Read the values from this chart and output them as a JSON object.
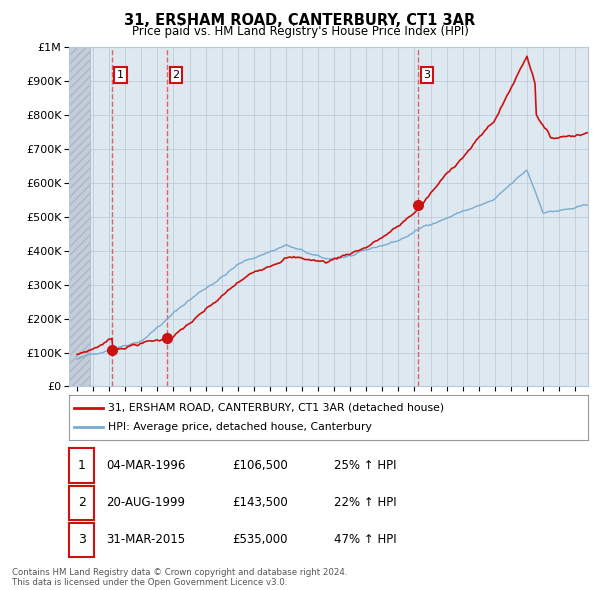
{
  "title": "31, ERSHAM ROAD, CANTERBURY, CT1 3AR",
  "subtitle": "Price paid vs. HM Land Registry's House Price Index (HPI)",
  "legend_label_red": "31, ERSHAM ROAD, CANTERBURY, CT1 3AR (detached house)",
  "legend_label_blue": "HPI: Average price, detached house, Canterbury",
  "transactions": [
    {
      "num": 1,
      "date": "04-MAR-1996",
      "year": 1996.17,
      "price": 106500,
      "hpi_pct": "25% ↑ HPI"
    },
    {
      "num": 2,
      "date": "20-AUG-1999",
      "year": 1999.63,
      "price": 143500,
      "hpi_pct": "22% ↑ HPI"
    },
    {
      "num": 3,
      "date": "31-MAR-2015",
      "year": 2015.25,
      "price": 535000,
      "hpi_pct": "47% ↑ HPI"
    }
  ],
  "table_rows": [
    {
      "num": "1",
      "date": "04-MAR-1996",
      "price": "£106,500",
      "change": "25% ↑ HPI"
    },
    {
      "num": "2",
      "date": "20-AUG-1999",
      "price": "£143,500",
      "change": "22% ↑ HPI"
    },
    {
      "num": "3",
      "date": "31-MAR-2015",
      "price": "£535,000",
      "change": "47% ↑ HPI"
    }
  ],
  "footnote": "Contains HM Land Registry data © Crown copyright and database right 2024.\nThis data is licensed under the Open Government Licence v3.0.",
  "ylim": [
    0,
    1000000
  ],
  "ytop_label": 1000000,
  "xlim_start": 1993.5,
  "xlim_end": 2025.8,
  "hatch_end": 1994.83,
  "background_color": "#ffffff",
  "plot_bg_color": "#dde8f0",
  "hatch_color": "#c4cdd8",
  "grid_color": "#b8c8d8",
  "red_color": "#cc1111",
  "blue_color": "#7aabcf",
  "dashed_line_color": "#dd5555",
  "num_box_color": "#cc1111"
}
